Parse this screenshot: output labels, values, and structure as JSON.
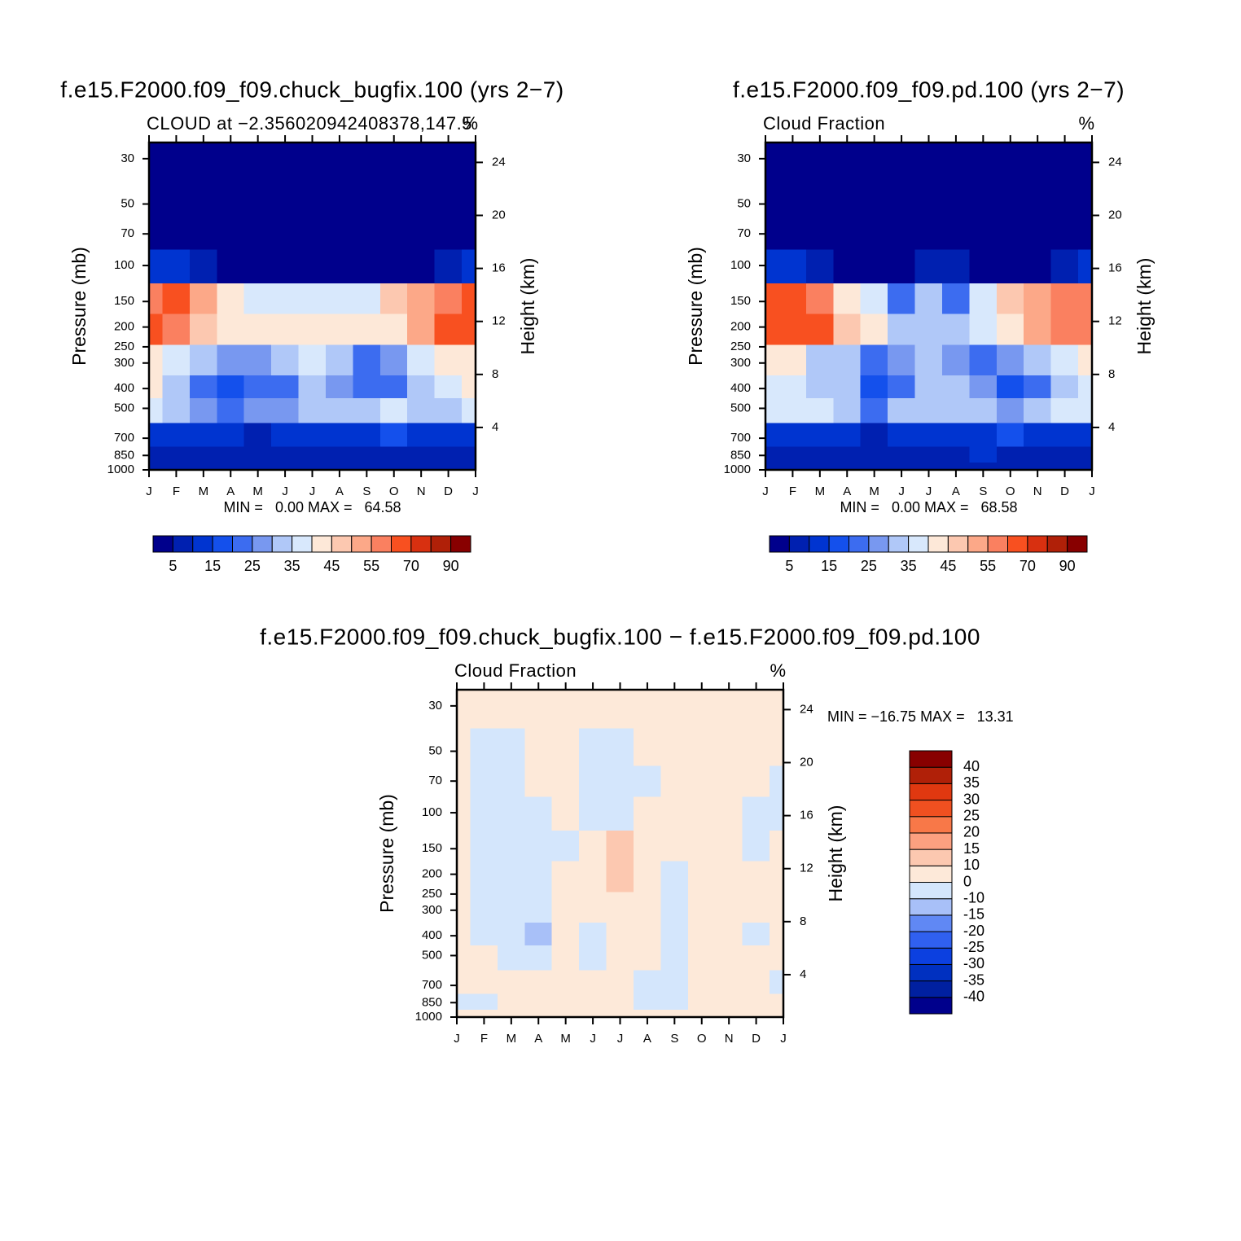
{
  "chart_data": [
    {
      "type": "contour",
      "title": "f.e15.F2000.f09_f09.chuck_bugfix.100 (yrs 2−7)",
      "subtitle": "CLOUD at −2.356020942408378,147.5",
      "units": "%",
      "stats": "MIN =   0.00 MAX =   64.58",
      "y_label": "Pressure (mb)",
      "y2_label": "Height (km)",
      "categories": [
        "J",
        "F",
        "M",
        "A",
        "M",
        "J",
        "J",
        "A",
        "S",
        "O",
        "N",
        "D",
        "J"
      ],
      "ylog": true,
      "ylim": [
        1000,
        25
      ],
      "yticks": [
        30,
        50,
        70,
        100,
        150,
        200,
        250,
        300,
        400,
        500,
        700,
        850,
        1000
      ],
      "y2lim": [
        0.8,
        25.5
      ],
      "y2ticks": [
        4,
        8,
        12,
        16,
        20,
        24
      ],
      "pressure_levels": [
        30,
        50,
        70,
        100,
        150,
        200,
        300,
        400,
        500,
        700,
        850,
        1000
      ],
      "z": [
        [
          2,
          2,
          2,
          2,
          2,
          2,
          2,
          2,
          2,
          2,
          2,
          2,
          2
        ],
        [
          2,
          2,
          2,
          2,
          2,
          2,
          2,
          2,
          2,
          2,
          2,
          2,
          2
        ],
        [
          3,
          3,
          3,
          3,
          3,
          3,
          3,
          3,
          3,
          3,
          3,
          3,
          3
        ],
        [
          10,
          10,
          6,
          4,
          4,
          4,
          4,
          4,
          4,
          4,
          4,
          8,
          10
        ],
        [
          58,
          60,
          50,
          40,
          36,
          35,
          35,
          35,
          36,
          45,
          52,
          58,
          60
        ],
        [
          60,
          58,
          48,
          44,
          42,
          40,
          40,
          40,
          40,
          42,
          50,
          60,
          62
        ],
        [
          40,
          38,
          30,
          25,
          28,
          30,
          35,
          30,
          22,
          28,
          35,
          40,
          42
        ],
        [
          42,
          34,
          24,
          18,
          24,
          20,
          32,
          28,
          20,
          24,
          30,
          36,
          42
        ],
        [
          38,
          34,
          28,
          24,
          26,
          28,
          34,
          32,
          32,
          36,
          34,
          34,
          36
        ],
        [
          14,
          14,
          12,
          10,
          8,
          10,
          12,
          14,
          14,
          16,
          14,
          14,
          14
        ],
        [
          8,
          8,
          8,
          6,
          5,
          6,
          7,
          8,
          7,
          8,
          8,
          8,
          8
        ],
        [
          8,
          8,
          8,
          8,
          8,
          8,
          8,
          8,
          8,
          8,
          8,
          8,
          8
        ]
      ],
      "levels": [
        5,
        {
          "value": 10,
          "label": null
        },
        15,
        {
          "value": 20,
          "label": null
        },
        25,
        {
          "value": 30,
          "label": null
        },
        35,
        {
          "value": 40,
          "label": null
        },
        45,
        {
          "value": 50,
          "label": null
        },
        55,
        {
          "value": 60,
          "label": null
        },
        70,
        {
          "value": 80,
          "label": null
        },
        90
      ],
      "colors": [
        "#00008c",
        "#0020b0",
        "#0034d0",
        "#1450ec",
        "#3c6cf0",
        "#7898f0",
        "#b0c8f8",
        "#d8e8fc",
        "#fde8d8",
        "#fcc8b0",
        "#fca888",
        "#fa8060",
        "#f85020",
        "#d83010",
        "#b02008",
        "#880000"
      ]
    },
    {
      "type": "contour",
      "title": "f.e15.F2000.f09_f09.pd.100 (yrs 2−7)",
      "subtitle": "Cloud Fraction",
      "units": "%",
      "stats": "MIN =   0.00 MAX =   68.58",
      "y_label": "Pressure (mb)",
      "y2_label": "Height (km)",
      "categories": [
        "J",
        "F",
        "M",
        "A",
        "M",
        "J",
        "J",
        "A",
        "S",
        "O",
        "N",
        "D",
        "J"
      ],
      "ylog": true,
      "ylim": [
        1000,
        25
      ],
      "yticks": [
        30,
        50,
        70,
        100,
        150,
        200,
        250,
        300,
        400,
        500,
        700,
        850,
        1000
      ],
      "y2lim": [
        0.8,
        25.5
      ],
      "y2ticks": [
        4,
        8,
        12,
        16,
        20,
        24
      ],
      "pressure_levels": [
        30,
        50,
        70,
        100,
        150,
        200,
        300,
        400,
        500,
        700,
        850,
        1000
      ],
      "z": [
        [
          2,
          2,
          2,
          2,
          2,
          2,
          2,
          2,
          2,
          2,
          2,
          2,
          2
        ],
        [
          2,
          2,
          2,
          2,
          2,
          2,
          2,
          2,
          2,
          2,
          2,
          2,
          2
        ],
        [
          3,
          3,
          3,
          3,
          3,
          3,
          3,
          3,
          3,
          3,
          3,
          3,
          3
        ],
        [
          10,
          10,
          6,
          4,
          4,
          4,
          6,
          6,
          4,
          4,
          4,
          8,
          10
        ],
        [
          60,
          62,
          56,
          44,
          38,
          22,
          30,
          22,
          38,
          48,
          54,
          56,
          58
        ],
        [
          62,
          64,
          60,
          46,
          42,
          32,
          30,
          32,
          36,
          44,
          50,
          56,
          58
        ],
        [
          42,
          40,
          34,
          30,
          22,
          28,
          34,
          28,
          22,
          28,
          32,
          36,
          40
        ],
        [
          36,
          36,
          34,
          30,
          16,
          24,
          30,
          30,
          28,
          16,
          24,
          34,
          36
        ],
        [
          38,
          36,
          36,
          34,
          22,
          30,
          34,
          34,
          30,
          26,
          32,
          36,
          38
        ],
        [
          14,
          14,
          12,
          10,
          8,
          10,
          12,
          14,
          14,
          16,
          14,
          14,
          14
        ],
        [
          8,
          8,
          8,
          6,
          5,
          6,
          7,
          8,
          10,
          8,
          8,
          8,
          8
        ],
        [
          8,
          8,
          8,
          8,
          8,
          8,
          8,
          8,
          8,
          8,
          8,
          8,
          8
        ]
      ],
      "levels": [
        5,
        {
          "value": 10,
          "label": null
        },
        15,
        {
          "value": 20,
          "label": null
        },
        25,
        {
          "value": 30,
          "label": null
        },
        35,
        {
          "value": 40,
          "label": null
        },
        45,
        {
          "value": 50,
          "label": null
        },
        55,
        {
          "value": 60,
          "label": null
        },
        70,
        {
          "value": 80,
          "label": null
        },
        90
      ],
      "colors": [
        "#00008c",
        "#0020b0",
        "#0034d0",
        "#1450ec",
        "#3c6cf0",
        "#7898f0",
        "#b0c8f8",
        "#d8e8fc",
        "#fde8d8",
        "#fcc8b0",
        "#fca888",
        "#fa8060",
        "#f85020",
        "#d83010",
        "#b02008",
        "#880000"
      ]
    },
    {
      "type": "contour",
      "title": "f.e15.F2000.f09_f09.chuck_bugfix.100 − f.e15.F2000.f09_f09.pd.100",
      "subtitle": "Cloud Fraction",
      "units": "%",
      "stats": "MIN = −16.75 MAX =   13.31",
      "y_label": "Pressure (mb)",
      "y2_label": "Height (km)",
      "categories": [
        "J",
        "F",
        "M",
        "A",
        "M",
        "J",
        "J",
        "A",
        "S",
        "O",
        "N",
        "D",
        "J"
      ],
      "ylog": true,
      "ylim": [
        1000,
        25
      ],
      "yticks": [
        30,
        50,
        70,
        100,
        150,
        200,
        250,
        300,
        400,
        500,
        700,
        850,
        1000
      ],
      "y2lim": [
        0.8,
        25.5
      ],
      "y2ticks": [
        4,
        8,
        12,
        16,
        20,
        24
      ],
      "pressure_levels": [
        30,
        50,
        70,
        100,
        150,
        200,
        300,
        400,
        500,
        700,
        850,
        1000
      ],
      "z": [
        [
          2,
          2,
          2,
          2,
          2,
          2,
          2,
          2,
          2,
          2,
          2,
          2,
          2
        ],
        [
          2,
          -2,
          -2,
          2,
          2,
          -2,
          -2,
          2,
          2,
          2,
          2,
          2,
          2
        ],
        [
          2,
          -2,
          -2,
          2,
          2,
          -2,
          -2,
          -2,
          2,
          2,
          2,
          2,
          -2
        ],
        [
          2,
          -2,
          -2,
          -2,
          2,
          -2,
          -2,
          2,
          2,
          2,
          2,
          -2,
          -2
        ],
        [
          2,
          -2,
          -2,
          -2,
          -2,
          2,
          12,
          2,
          2,
          2,
          2,
          -2,
          2
        ],
        [
          2,
          -2,
          -2,
          -2,
          2,
          2,
          12,
          2,
          -2,
          2,
          2,
          2,
          2
        ],
        [
          2,
          -2,
          -2,
          -2,
          2,
          2,
          2,
          2,
          -2,
          2,
          2,
          2,
          2
        ],
        [
          2,
          -2,
          -2,
          -12,
          2,
          -2,
          2,
          2,
          -2,
          2,
          2,
          -2,
          2
        ],
        [
          2,
          2,
          -2,
          -2,
          2,
          -2,
          2,
          2,
          -2,
          2,
          2,
          2,
          2
        ],
        [
          2,
          2,
          2,
          2,
          2,
          2,
          2,
          -2,
          -2,
          2,
          2,
          2,
          -2
        ],
        [
          -2,
          -2,
          2,
          2,
          2,
          2,
          2,
          -2,
          -2,
          2,
          2,
          2,
          2
        ],
        [
          2,
          2,
          2,
          2,
          2,
          2,
          2,
          2,
          2,
          2,
          2,
          2,
          2
        ]
      ],
      "levels": [
        -40,
        -35,
        -30,
        -25,
        -20,
        -15,
        -10,
        0,
        10,
        15,
        20,
        25,
        30,
        35,
        40
      ],
      "colors": [
        "#00008c",
        "#0020a0",
        "#0030c0",
        "#0c40e0",
        "#3060f0",
        "#6088f4",
        "#a8c0f8",
        "#d4e6fc",
        "#fde9d9",
        "#fcc8b0",
        "#fca080",
        "#f87848",
        "#f05020",
        "#e03810",
        "#b02008",
        "#880000"
      ]
    }
  ]
}
